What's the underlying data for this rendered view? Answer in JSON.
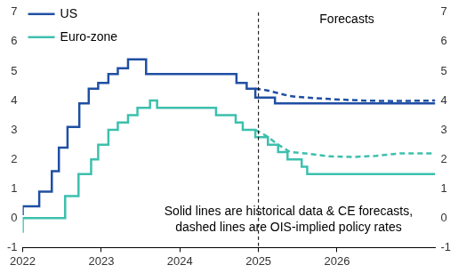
{
  "chart_data": {
    "type": "line",
    "legend": "upper left",
    "grid": false,
    "xlim": [
      2022,
      2027.25
    ],
    "xticks": [
      2022,
      2023,
      2024,
      2025,
      2026
    ],
    "ylim": [
      -1,
      7
    ],
    "yticks": [
      -1,
      0,
      1,
      2,
      3,
      4,
      5,
      6,
      7
    ],
    "y2lim": [
      -1,
      7
    ],
    "y2ticks": [
      -1,
      0,
      1,
      2,
      3,
      4,
      5,
      6,
      7
    ],
    "vline": {
      "x": 2025,
      "label": "Forecasts"
    },
    "note": [
      "Solid lines are historical data & CE forecasts,",
      "dashed lines are OIS-implied policy rates"
    ],
    "series": [
      {
        "name": "US",
        "color": "#1f4fa3",
        "type": "step",
        "line_style": "solid",
        "x": [
          2022.0,
          2022.21,
          2022.37,
          2022.46,
          2022.57,
          2022.72,
          2022.84,
          2022.96,
          2023.09,
          2023.21,
          2023.34,
          2023.57,
          2024.72,
          2024.85,
          2024.96,
          2025.21,
          2025.46,
          2027.25
        ],
        "values": [
          0.1,
          0.4,
          0.9,
          1.6,
          2.4,
          3.1,
          3.9,
          4.4,
          4.6,
          4.9,
          5.1,
          5.4,
          4.9,
          4.6,
          4.4,
          4.1,
          3.9,
          3.9
        ]
      },
      {
        "name": "Euro-zone",
        "color": "#3cc0ad",
        "type": "step",
        "line_style": "solid",
        "x": [
          2022.0,
          2022.54,
          2022.71,
          2022.87,
          2022.96,
          2023.09,
          2023.21,
          2023.34,
          2023.46,
          2023.62,
          2023.71,
          2024.46,
          2024.71,
          2024.8,
          2024.96,
          2025.12,
          2025.25,
          2025.37,
          2025.55,
          2025.62,
          2025.75,
          2027.25
        ],
        "values": [
          -0.5,
          0.0,
          0.75,
          1.5,
          2.0,
          2.5,
          3.0,
          3.25,
          3.5,
          3.75,
          4.0,
          3.75,
          3.5,
          3.25,
          3.0,
          2.75,
          2.5,
          2.25,
          2.0,
          1.75,
          1.5,
          1.5
        ]
      },
      {
        "name": "US",
        "color": "#1f4fa3",
        "type": "line",
        "line_style": "dashed",
        "x": [
          2024.96,
          2025.1,
          2025.25,
          2025.4,
          2025.6,
          2025.9,
          2026.3,
          2026.7,
          2027.25
        ],
        "values": [
          4.4,
          4.35,
          4.25,
          4.15,
          4.1,
          4.05,
          4.0,
          3.98,
          4.0
        ]
      },
      {
        "name": "Euro-zone",
        "color": "#3cc0ad",
        "type": "line",
        "line_style": "dashed",
        "x": [
          2024.96,
          2025.1,
          2025.25,
          2025.4,
          2025.6,
          2025.9,
          2026.2,
          2026.5,
          2026.8,
          2027.25
        ],
        "values": [
          3.0,
          2.8,
          2.5,
          2.25,
          2.2,
          2.1,
          2.08,
          2.12,
          2.2,
          2.2
        ]
      }
    ]
  }
}
